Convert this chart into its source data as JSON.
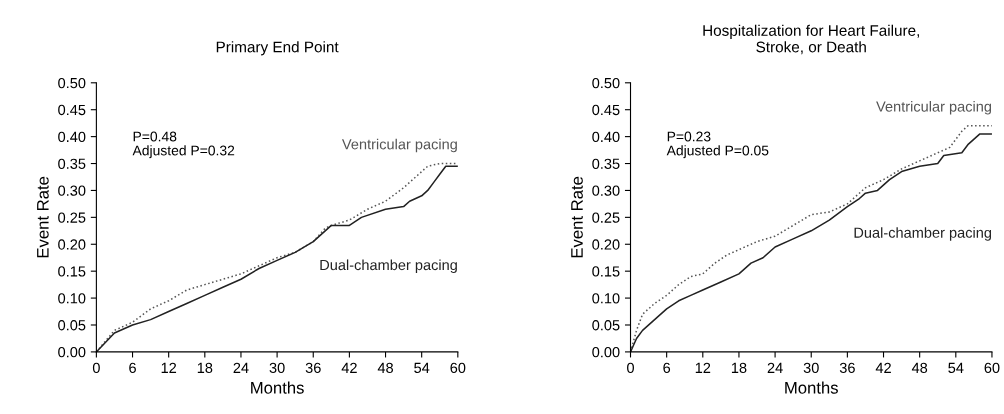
{
  "chart_data": [
    {
      "type": "line",
      "title": "Primary End Point",
      "xlabel": "Months",
      "ylabel": "Event Rate",
      "xlim": [
        0,
        60
      ],
      "xticks": [
        0,
        6,
        12,
        18,
        24,
        30,
        36,
        42,
        48,
        54,
        60
      ],
      "ylim": [
        0,
        0.5
      ],
      "yticks": [
        {
          "value": 0,
          "label": "0.00"
        },
        {
          "value": 0.05,
          "label": "0.05"
        },
        {
          "value": 0.1,
          "label": "0.10"
        },
        {
          "value": 0.15,
          "label": "0.15"
        },
        {
          "value": 0.2,
          "label": "0.20"
        },
        {
          "value": 0.25,
          "label": "0.25"
        },
        {
          "value": 0.3,
          "label": "0.30"
        },
        {
          "value": 0.35,
          "label": "0.35"
        },
        {
          "value": 0.4,
          "label": "0.40"
        },
        {
          "value": 0.45,
          "label": "0.45"
        },
        {
          "value": 0.5,
          "label": "0.50"
        }
      ],
      "grid": false,
      "legend": false,
      "annotations": [
        "P=0.48\nAdjusted P=0.32"
      ],
      "series": [
        {
          "name": "Ventricular pacing",
          "color": "#555555",
          "line_style": "dotted",
          "x": [
            0,
            3,
            6,
            9,
            12,
            15,
            18,
            21,
            24,
            27,
            30,
            33,
            36,
            38,
            39,
            42,
            45,
            48,
            51,
            54,
            55,
            57,
            60
          ],
          "values": [
            0,
            0.04,
            0.055,
            0.08,
            0.095,
            0.115,
            0.125,
            0.135,
            0.145,
            0.16,
            0.175,
            0.185,
            0.205,
            0.23,
            0.235,
            0.245,
            0.265,
            0.28,
            0.305,
            0.335,
            0.345,
            0.35,
            0.35
          ]
        },
        {
          "name": "Dual-chamber pacing",
          "color": "#222222",
          "line_style": "solid",
          "x": [
            0,
            3,
            6,
            9,
            12,
            15,
            18,
            21,
            24,
            27,
            30,
            33,
            36,
            39,
            42,
            44,
            48,
            51,
            52,
            54,
            55,
            56,
            57,
            58,
            60
          ],
          "values": [
            0,
            0.035,
            0.05,
            0.06,
            0.075,
            0.09,
            0.105,
            0.12,
            0.135,
            0.155,
            0.17,
            0.185,
            0.205,
            0.235,
            0.235,
            0.25,
            0.265,
            0.27,
            0.28,
            0.29,
            0.3,
            0.315,
            0.33,
            0.345,
            0.345
          ]
        }
      ]
    },
    {
      "type": "line",
      "title": "Hospitalization for Heart Failure,\nStroke, or Death",
      "xlabel": "Months",
      "ylabel": "Event Rate",
      "xlim": [
        0,
        60
      ],
      "xticks": [
        0,
        6,
        12,
        18,
        24,
        30,
        36,
        42,
        48,
        54,
        60
      ],
      "ylim": [
        0,
        0.5
      ],
      "yticks": [
        {
          "value": 0,
          "label": "0.00"
        },
        {
          "value": 0.05,
          "label": "0.05"
        },
        {
          "value": 0.1,
          "label": "0.10"
        },
        {
          "value": 0.15,
          "label": "0.15"
        },
        {
          "value": 0.2,
          "label": "0.20"
        },
        {
          "value": 0.25,
          "label": "0.25"
        },
        {
          "value": 0.3,
          "label": "0.30"
        },
        {
          "value": 0.35,
          "label": "0.35"
        },
        {
          "value": 0.4,
          "label": "0.40"
        },
        {
          "value": 0.45,
          "label": "0.45"
        },
        {
          "value": 0.5,
          "label": "0.50"
        }
      ],
      "grid": false,
      "legend": false,
      "annotations": [
        "P=0.23\nAdjusted P=0.05"
      ],
      "series": [
        {
          "name": "Ventricular pacing",
          "color": "#555555",
          "line_style": "dotted",
          "x": [
            0,
            1,
            2,
            4,
            6,
            8,
            10,
            12,
            14,
            16,
            18,
            21,
            24,
            27,
            30,
            33,
            36,
            39,
            42,
            45,
            48,
            51,
            53,
            54,
            55,
            56,
            60
          ],
          "values": [
            0,
            0.04,
            0.07,
            0.09,
            0.105,
            0.125,
            0.14,
            0.145,
            0.165,
            0.18,
            0.19,
            0.205,
            0.215,
            0.235,
            0.255,
            0.26,
            0.275,
            0.305,
            0.32,
            0.34,
            0.355,
            0.37,
            0.38,
            0.395,
            0.41,
            0.42,
            0.42
          ]
        },
        {
          "name": "Dual-chamber pacing",
          "color": "#222222",
          "line_style": "solid",
          "x": [
            0,
            1,
            2,
            4,
            6,
            8,
            10,
            12,
            15,
            18,
            20,
            22,
            24,
            27,
            30,
            33,
            36,
            38,
            39,
            41,
            43,
            45,
            48,
            51,
            52,
            55,
            56,
            58,
            60
          ],
          "values": [
            0,
            0.025,
            0.04,
            0.06,
            0.08,
            0.095,
            0.105,
            0.115,
            0.13,
            0.145,
            0.165,
            0.175,
            0.195,
            0.21,
            0.225,
            0.245,
            0.27,
            0.285,
            0.295,
            0.3,
            0.32,
            0.335,
            0.345,
            0.35,
            0.365,
            0.37,
            0.385,
            0.405,
            0.405
          ]
        }
      ]
    }
  ]
}
